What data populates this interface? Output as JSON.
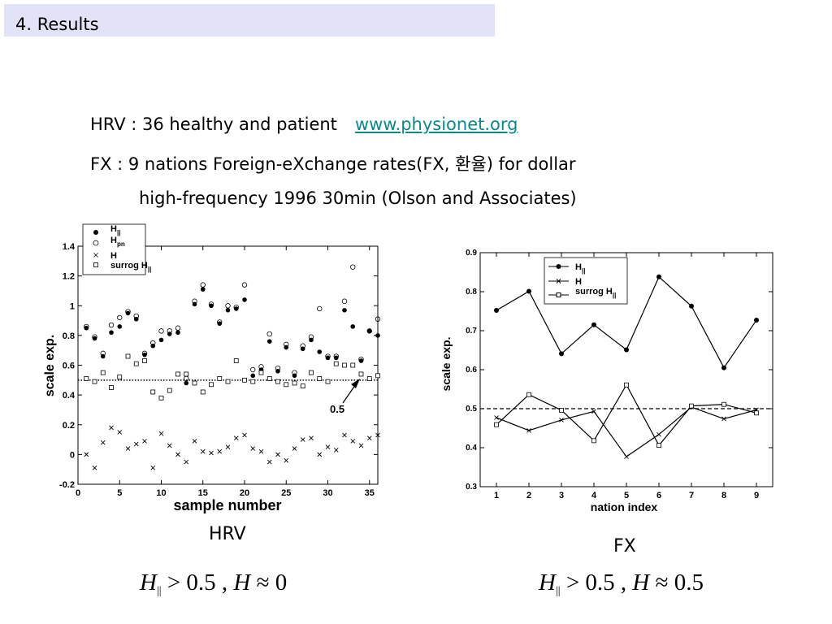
{
  "header": {
    "title": "4. Results"
  },
  "info": {
    "hrv_line": "HRV : 36 healthy and patient",
    "hrv_link": "www.physionet.org",
    "fx_line": "FX : 9 nations Foreign-eXchange rates(FX, 환율) for dollar",
    "fx_line2": "high-frequency 1996 30min (Olson and Associates)"
  },
  "hrv_title": "HRV",
  "fx_title": "FX",
  "formula_hrv": {
    "sym1": "H",
    "sub": "||",
    "rel1": " > 0.5 , ",
    "sym2": "H",
    "rel2": " ≈ 0"
  },
  "formula_fx": {
    "sym1": "H",
    "sub": "||",
    "rel1": " > 0.5 , ",
    "sym2": "H",
    "rel2": " ≈ 0.5"
  },
  "chart_data": [
    {
      "type": "scatter",
      "xlabel": "sample number",
      "ylabel": "scale exp.",
      "xlim": [
        0,
        36
      ],
      "ylim": [
        -0.2,
        1.4
      ],
      "xticks": [
        0,
        5,
        10,
        15,
        20,
        25,
        30,
        35
      ],
      "yticks": [
        -0.2,
        0,
        0.2,
        0.4,
        0.6,
        0.8,
        1,
        1.2,
        1.4
      ],
      "reference_line": 0.5,
      "annotation": "0.5",
      "legend": [
        "H",
        "||",
        "H",
        "pn",
        "H",
        "surrog H",
        "||"
      ],
      "legend_position": "top-left",
      "series": [
        {
          "name": "H||",
          "marker": "filled-circle",
          "x": [
            1,
            2,
            3,
            4,
            5,
            6,
            7,
            8,
            9,
            10,
            11,
            12,
            13,
            14,
            15,
            16,
            17,
            18,
            19,
            20,
            21,
            22,
            23,
            24,
            25,
            26,
            27,
            28,
            29,
            30,
            31,
            32,
            33,
            34,
            35,
            36
          ],
          "y": [
            0.85,
            0.78,
            0.66,
            0.82,
            0.86,
            0.95,
            0.91,
            0.67,
            0.73,
            0.77,
            0.81,
            0.82,
            0.48,
            1.01,
            1.11,
            1.0,
            0.88,
            0.97,
            0.98,
            1.04,
            0.53,
            0.57,
            0.76,
            0.56,
            0.72,
            0.53,
            0.71,
            0.77,
            0.69,
            0.65,
            0.65,
            0.97,
            0.86,
            0.63,
            0.83,
            0.8
          ]
        },
        {
          "name": "Hpn",
          "marker": "open-circle",
          "x": [
            1,
            2,
            3,
            4,
            5,
            6,
            7,
            8,
            9,
            10,
            11,
            12,
            13,
            14,
            15,
            16,
            17,
            18,
            19,
            20,
            21,
            22,
            23,
            24,
            25,
            26,
            27,
            28,
            29,
            30,
            31,
            32,
            33,
            34,
            35,
            36
          ],
          "y": [
            0.86,
            0.79,
            0.68,
            0.87,
            0.92,
            0.96,
            0.93,
            0.68,
            0.75,
            0.83,
            0.83,
            0.85,
            0.51,
            1.03,
            1.14,
            1.01,
            0.89,
            1.0,
            0.99,
            1.14,
            0.57,
            0.59,
            0.81,
            0.58,
            0.74,
            0.55,
            0.73,
            0.79,
            0.98,
            0.66,
            0.66,
            1.03,
            1.26,
            0.64,
            0.83,
            0.91
          ]
        },
        {
          "name": "H",
          "marker": "cross",
          "x": [
            1,
            2,
            3,
            4,
            5,
            6,
            7,
            8,
            9,
            10,
            11,
            12,
            13,
            14,
            15,
            16,
            17,
            18,
            19,
            20,
            21,
            22,
            23,
            24,
            25,
            26,
            27,
            28,
            29,
            30,
            31,
            32,
            33,
            34,
            35,
            36
          ],
          "y": [
            0.0,
            -0.09,
            0.08,
            0.18,
            0.15,
            0.04,
            0.07,
            0.09,
            -0.09,
            0.14,
            0.06,
            0.0,
            -0.05,
            0.09,
            0.02,
            0.01,
            0.02,
            0.05,
            0.11,
            0.13,
            0.04,
            0.02,
            -0.05,
            0.0,
            -0.04,
            0.04,
            0.1,
            0.11,
            0.0,
            0.05,
            0.03,
            0.13,
            0.09,
            0.06,
            0.11,
            0.13
          ]
        },
        {
          "name": "surrog H||",
          "marker": "open-square",
          "x": [
            1,
            2,
            3,
            4,
            5,
            6,
            7,
            8,
            9,
            10,
            11,
            12,
            13,
            14,
            15,
            16,
            17,
            18,
            19,
            20,
            21,
            22,
            23,
            24,
            25,
            26,
            27,
            28,
            29,
            30,
            31,
            32,
            33,
            34,
            35,
            36
          ],
          "y": [
            0.51,
            0.49,
            0.55,
            0.45,
            0.52,
            0.66,
            0.61,
            0.63,
            0.42,
            0.38,
            0.43,
            0.54,
            0.54,
            0.48,
            0.42,
            0.47,
            0.51,
            0.49,
            0.63,
            0.5,
            0.49,
            0.55,
            0.51,
            0.49,
            0.47,
            0.48,
            0.46,
            0.55,
            0.51,
            0.49,
            0.61,
            0.6,
            0.6,
            0.54,
            0.51,
            0.53
          ]
        }
      ]
    },
    {
      "type": "line",
      "xlabel": "nation index",
      "ylabel": "scale exp.",
      "xlim": [
        0.5,
        9.5
      ],
      "ylim": [
        0.3,
        0.9
      ],
      "xticks": [
        1,
        2,
        3,
        4,
        5,
        6,
        7,
        8,
        9
      ],
      "yticks": [
        0.3,
        0.4,
        0.5,
        0.6,
        0.7,
        0.8,
        0.9
      ],
      "reference_line": 0.5,
      "legend": [
        "H",
        "||",
        "H",
        "surrog H",
        "||"
      ],
      "legend_position": "top-left",
      "x": [
        1,
        2,
        3,
        4,
        5,
        6,
        7,
        8,
        9
      ],
      "series": [
        {
          "name": "H||",
          "marker": "filled-circle",
          "values": [
            0.752,
            0.801,
            0.641,
            0.715,
            0.651,
            0.838,
            0.763,
            0.605,
            0.727
          ]
        },
        {
          "name": "H",
          "marker": "cross",
          "values": [
            0.477,
            0.444,
            0.471,
            0.493,
            0.377,
            0.434,
            0.504,
            0.474,
            0.497
          ]
        },
        {
          "name": "surrog H||",
          "marker": "open-square",
          "values": [
            0.459,
            0.536,
            0.496,
            0.418,
            0.561,
            0.406,
            0.507,
            0.511,
            0.489
          ]
        }
      ]
    }
  ]
}
